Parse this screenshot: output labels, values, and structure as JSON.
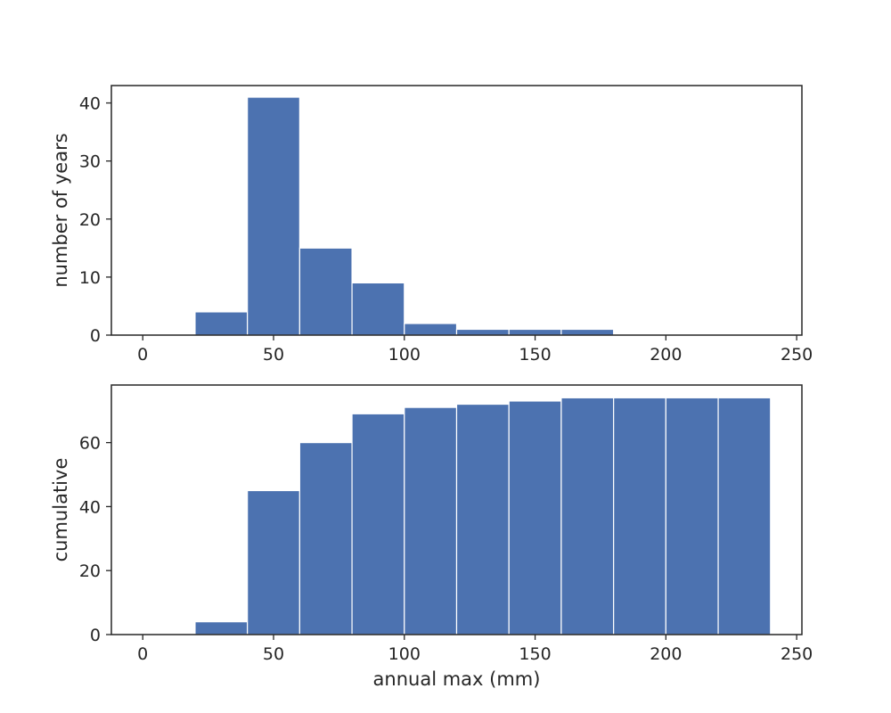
{
  "chart_data": [
    {
      "type": "bar",
      "title": "",
      "xlabel": "",
      "ylabel": "number of years",
      "bin_edges": [
        0,
        20,
        40,
        60,
        80,
        100,
        120,
        140,
        160,
        180,
        200,
        220,
        240
      ],
      "values": [
        0,
        4,
        41,
        15,
        9,
        2,
        1,
        1,
        1,
        0,
        0,
        0
      ],
      "xlim": [
        -12,
        252
      ],
      "ylim": [
        0,
        43
      ],
      "xticks": [
        "0",
        "50",
        "100",
        "150",
        "200",
        "250"
      ],
      "yticks": [
        "0",
        "10",
        "20",
        "30",
        "40"
      ],
      "bar_color": "#4c72b0",
      "grid": false
    },
    {
      "type": "bar",
      "title": "",
      "xlabel": "annual max (mm)",
      "ylabel": "cumulative",
      "bin_edges": [
        0,
        20,
        40,
        60,
        80,
        100,
        120,
        140,
        160,
        180,
        200,
        220,
        240
      ],
      "values": [
        0,
        4,
        45,
        60,
        69,
        71,
        72,
        73,
        74,
        74,
        74,
        74
      ],
      "xlim": [
        -12,
        252
      ],
      "ylim": [
        0,
        78
      ],
      "xticks": [
        "0",
        "50",
        "100",
        "150",
        "200",
        "250"
      ],
      "yticks": [
        "0",
        "20",
        "40",
        "60"
      ],
      "bar_color": "#4c72b0",
      "grid": false
    }
  ]
}
